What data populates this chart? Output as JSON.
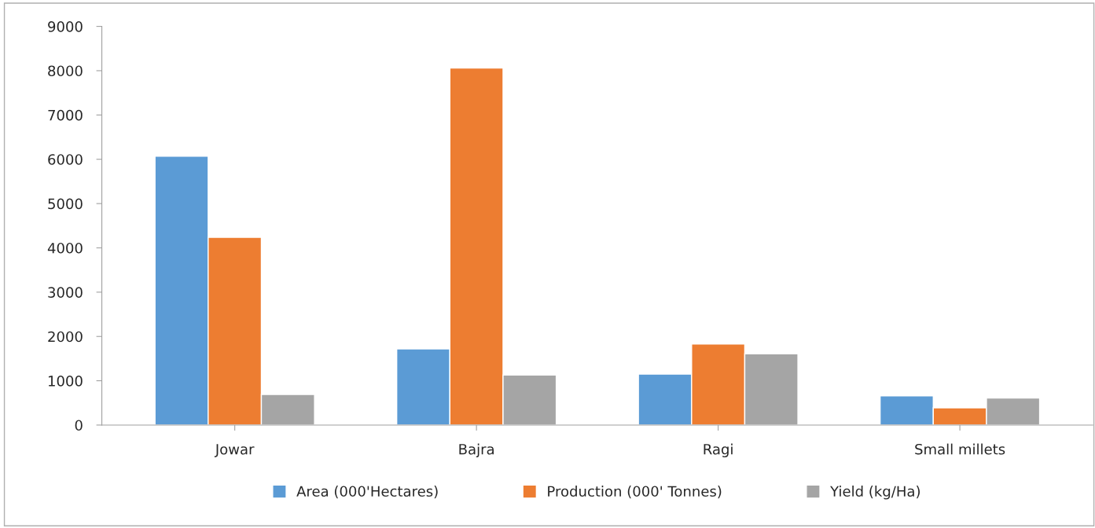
{
  "chart_data": {
    "type": "bar",
    "categories": [
      "Jowar",
      "Bajra",
      "Ragi",
      "Small millets"
    ],
    "series": [
      {
        "name": "Area (000'Hectares)",
        "color": "#5b9bd5",
        "values": [
          6070,
          1720,
          1150,
          660
        ]
      },
      {
        "name": "Production (000' Tonnes)",
        "color": "#ed7d31",
        "values": [
          4240,
          8060,
          1830,
          390
        ]
      },
      {
        "name": "Yield (kg/Ha)",
        "color": "#a5a5a5",
        "values": [
          690,
          1130,
          1610,
          610
        ]
      }
    ],
    "ylim": [
      0,
      9000
    ],
    "yticks": [
      0,
      1000,
      2000,
      3000,
      4000,
      5000,
      6000,
      7000,
      8000,
      9000
    ],
    "grid": false,
    "legend": "bottom"
  }
}
